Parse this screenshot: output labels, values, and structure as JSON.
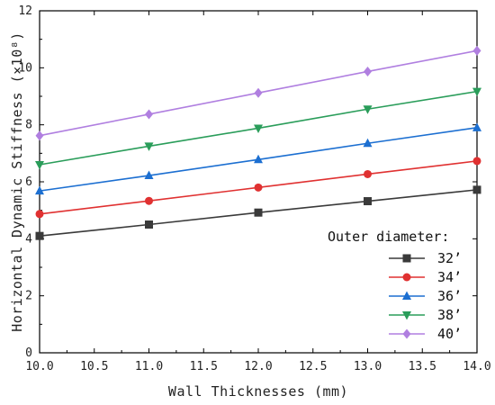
{
  "chart_data": {
    "type": "line",
    "title": "",
    "xlabel": "Wall Thicknesses (mm)",
    "ylabel": "Horizontal Dynamic Stiffness (×10⁸)",
    "xlim": [
      10.0,
      14.0
    ],
    "ylim": [
      0,
      12
    ],
    "x_ticks": [
      "10.0",
      "10.5",
      "11.0",
      "11.5",
      "12.0",
      "12.5",
      "13.0",
      "13.5",
      "14.0"
    ],
    "y_ticks": [
      "0",
      "2",
      "4",
      "6",
      "8",
      "10",
      "12"
    ],
    "x": [
      10,
      11,
      12,
      13,
      14
    ],
    "grid": false,
    "legend_title": "Outer diameter:",
    "legend_position": "bottom-right",
    "series": [
      {
        "name": "32’",
        "values": [
          4.1,
          4.5,
          4.92,
          5.32,
          5.72
        ],
        "color": "#3a3a3a",
        "marker": "square"
      },
      {
        "name": "34’",
        "values": [
          4.87,
          5.33,
          5.8,
          6.27,
          6.73
        ],
        "color": "#e03131",
        "marker": "circle"
      },
      {
        "name": "36’",
        "values": [
          5.68,
          6.22,
          6.78,
          7.35,
          7.9
        ],
        "color": "#1c6fd1",
        "marker": "triangle-up"
      },
      {
        "name": "38’",
        "values": [
          6.6,
          7.25,
          7.88,
          8.55,
          9.17
        ],
        "color": "#2a9d5a",
        "marker": "triangle-down"
      },
      {
        "name": "40’",
        "values": [
          7.62,
          8.37,
          9.12,
          9.87,
          10.6
        ],
        "color": "#b07fe0",
        "marker": "diamond"
      }
    ]
  }
}
